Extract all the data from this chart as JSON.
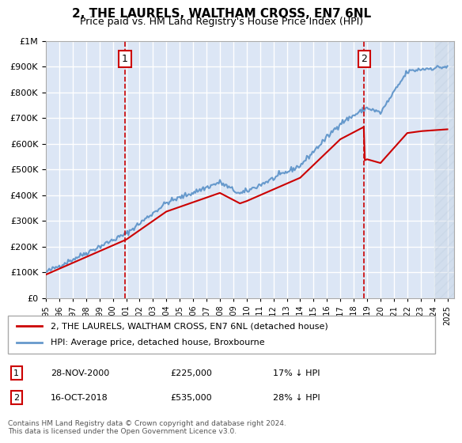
{
  "title": "2, THE LAURELS, WALTHAM CROSS, EN7 6NL",
  "subtitle": "Price paid vs. HM Land Registry's House Price Index (HPI)",
  "xlabel": "",
  "ylabel": "",
  "ylim": [
    0,
    1000000
  ],
  "yticks": [
    0,
    100000,
    200000,
    300000,
    400000,
    500000,
    600000,
    700000,
    800000,
    900000,
    1000000
  ],
  "ytick_labels": [
    "£0",
    "£100K",
    "£200K",
    "£300K",
    "£400K",
    "£500K",
    "£600K",
    "£700K",
    "£800K",
    "£900K",
    "£1M"
  ],
  "background_color": "#dce6f5",
  "plot_bg_color": "#dce6f5",
  "grid_color": "#ffffff",
  "hpi_line_color": "#6699cc",
  "price_line_color": "#cc0000",
  "vline_color": "#cc0000",
  "sale1_date_num": 2000.91,
  "sale2_date_num": 2018.79,
  "sale1_price": 225000,
  "sale2_price": 535000,
  "legend_label_price": "2, THE LAURELS, WALTHAM CROSS, EN7 6NL (detached house)",
  "legend_label_hpi": "HPI: Average price, detached house, Broxbourne",
  "table_rows": [
    {
      "num": "1",
      "date": "28-NOV-2000",
      "price": "£225,000",
      "hpi": "17% ↓ HPI"
    },
    {
      "num": "2",
      "date": "16-OCT-2018",
      "price": "£535,000",
      "hpi": "28% ↓ HPI"
    }
  ],
  "footnote": "Contains HM Land Registry data © Crown copyright and database right 2024.\nThis data is licensed under the Open Government Licence v3.0.",
  "hatch_color": "#bbccdd",
  "hatch_alpha": 0.5
}
